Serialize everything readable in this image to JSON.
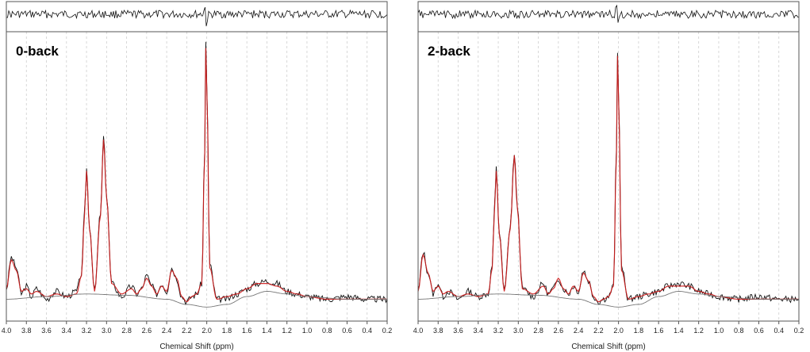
{
  "chart_data": [
    {
      "type": "line",
      "label": "0-back",
      "xlabel": "Chemical Shift (ppm)",
      "ylabel": "",
      "xlim": [
        4.0,
        0.2
      ],
      "x_reversed": true,
      "xticks": [
        "4.0",
        "3.8",
        "3.6",
        "3.4",
        "3.2",
        "3.0",
        "2.8",
        "2.6",
        "2.4",
        "2.2",
        "2.0",
        "1.8",
        "1.6",
        "1.4",
        "1.2",
        "1.0",
        "0.8",
        "0.6",
        "0.4",
        "0.2"
      ],
      "grid": "vertical dashed at each tick",
      "peaks_ppm_rel_height": [
        [
          3.2,
          0.52
        ],
        [
          3.03,
          0.64
        ],
        [
          2.01,
          1.0
        ]
      ],
      "series": [
        {
          "color": "#111111",
          "role": "measured spectrum",
          "x": [
            4.0,
            3.95,
            3.9,
            3.85,
            3.8,
            3.75,
            3.7,
            3.6,
            3.5,
            3.4,
            3.3,
            3.25,
            3.22,
            3.2,
            3.17,
            3.12,
            3.06,
            3.03,
            3.0,
            2.95,
            2.85,
            2.75,
            2.7,
            2.65,
            2.6,
            2.55,
            2.5,
            2.45,
            2.4,
            2.35,
            2.3,
            2.25,
            2.2,
            2.15,
            2.1,
            2.05,
            2.02,
            2.01,
            2.0,
            1.97,
            1.9,
            1.8,
            1.7,
            1.6,
            1.5,
            1.4,
            1.3,
            1.2,
            1.1,
            1.0,
            0.8,
            0.6,
            0.4,
            0.2
          ],
          "y": [
            0.06,
            0.18,
            0.14,
            0.04,
            0.07,
            0.03,
            0.06,
            0.02,
            0.05,
            0.03,
            0.05,
            0.12,
            0.35,
            0.52,
            0.3,
            0.05,
            0.35,
            0.64,
            0.42,
            0.08,
            0.03,
            0.07,
            0.04,
            0.06,
            0.11,
            0.07,
            0.04,
            0.08,
            0.05,
            0.14,
            0.1,
            0.03,
            0.01,
            0.03,
            0.04,
            0.08,
            0.6,
            1.0,
            0.85,
            0.15,
            0.02,
            0.02,
            0.04,
            0.06,
            0.08,
            0.09,
            0.08,
            0.05,
            0.04,
            0.03,
            0.02,
            0.03,
            0.02,
            0.02
          ]
        },
        {
          "color": "#cc1a1a",
          "role": "model fit",
          "x": [
            4.0,
            3.95,
            3.9,
            3.85,
            3.8,
            3.75,
            3.7,
            3.6,
            3.5,
            3.4,
            3.3,
            3.25,
            3.22,
            3.2,
            3.17,
            3.12,
            3.06,
            3.03,
            3.0,
            2.95,
            2.85,
            2.75,
            2.7,
            2.65,
            2.6,
            2.55,
            2.5,
            2.45,
            2.4,
            2.35,
            2.3,
            2.25,
            2.2,
            2.15,
            2.1,
            2.05,
            2.02,
            2.01,
            2.0,
            1.97,
            1.9,
            1.8,
            1.7,
            1.6,
            1.5,
            1.4,
            1.3,
            1.2,
            1.1,
            1.0,
            0.8,
            0.6,
            0.4,
            0.2
          ],
          "y": [
            0.06,
            0.17,
            0.13,
            0.05,
            0.06,
            0.04,
            0.05,
            0.03,
            0.04,
            0.03,
            0.04,
            0.11,
            0.34,
            0.51,
            0.29,
            0.05,
            0.34,
            0.63,
            0.41,
            0.08,
            0.04,
            0.06,
            0.04,
            0.06,
            0.1,
            0.07,
            0.04,
            0.07,
            0.05,
            0.13,
            0.1,
            0.03,
            0.01,
            0.03,
            0.04,
            0.08,
            0.58,
            0.98,
            0.83,
            0.14,
            0.02,
            0.03,
            0.04,
            0.06,
            0.08,
            0.08,
            0.07,
            0.05,
            0.04,
            0.03,
            0.02,
            0.02,
            0.02,
            0.02
          ]
        },
        {
          "color": "#777777",
          "role": "baseline",
          "x": [
            4.0,
            3.6,
            3.2,
            2.8,
            2.4,
            2.2,
            2.0,
            1.8,
            1.6,
            1.4,
            1.2,
            1.0,
            0.6,
            0.2
          ],
          "y": [
            0.02,
            0.03,
            0.04,
            0.035,
            0.02,
            0.0,
            -0.01,
            0.0,
            0.03,
            0.05,
            0.04,
            0.03,
            0.02,
            0.02
          ]
        }
      ]
    },
    {
      "type": "line",
      "label": "2-back",
      "xlabel": "Chemical Shift (ppm)",
      "ylabel": "",
      "xlim": [
        4.0,
        0.2
      ],
      "x_reversed": true,
      "xticks": [
        "4.0",
        "3.8",
        "3.6",
        "3.4",
        "3.2",
        "3.0",
        "2.8",
        "2.6",
        "2.4",
        "2.2",
        "2.0",
        "1.8",
        "1.6",
        "1.4",
        "1.2",
        "1.0",
        "0.8",
        "0.6",
        "0.4",
        "0.2"
      ],
      "grid": "vertical dashed at each tick",
      "peaks_ppm_rel_height": [
        [
          3.22,
          0.52
        ],
        [
          3.04,
          0.58
        ],
        [
          2.01,
          0.97
        ]
      ],
      "series": [
        {
          "color": "#111111",
          "role": "measured spectrum",
          "x": [
            4.0,
            3.95,
            3.9,
            3.85,
            3.8,
            3.75,
            3.7,
            3.6,
            3.5,
            3.4,
            3.3,
            3.26,
            3.24,
            3.22,
            3.19,
            3.14,
            3.08,
            3.04,
            3.01,
            2.96,
            2.85,
            2.75,
            2.7,
            2.65,
            2.6,
            2.55,
            2.5,
            2.45,
            2.4,
            2.35,
            2.3,
            2.25,
            2.2,
            2.15,
            2.1,
            2.05,
            2.02,
            2.01,
            2.0,
            1.97,
            1.9,
            1.8,
            1.7,
            1.6,
            1.5,
            1.4,
            1.3,
            1.2,
            1.1,
            1.0,
            0.8,
            0.6,
            0.4,
            0.2
          ],
          "y": [
            0.05,
            0.2,
            0.12,
            0.04,
            0.08,
            0.03,
            0.05,
            0.02,
            0.05,
            0.03,
            0.04,
            0.15,
            0.35,
            0.52,
            0.28,
            0.05,
            0.3,
            0.58,
            0.38,
            0.06,
            0.03,
            0.08,
            0.04,
            0.06,
            0.1,
            0.06,
            0.04,
            0.07,
            0.05,
            0.13,
            0.09,
            0.03,
            0.01,
            0.02,
            0.03,
            0.07,
            0.6,
            0.97,
            0.82,
            0.14,
            0.02,
            0.03,
            0.04,
            0.05,
            0.07,
            0.08,
            0.07,
            0.05,
            0.04,
            0.03,
            0.02,
            0.03,
            0.02,
            0.02
          ]
        },
        {
          "color": "#cc1a1a",
          "role": "model fit",
          "x": [
            4.0,
            3.95,
            3.9,
            3.85,
            3.8,
            3.75,
            3.7,
            3.6,
            3.5,
            3.4,
            3.3,
            3.26,
            3.24,
            3.22,
            3.19,
            3.14,
            3.08,
            3.04,
            3.01,
            2.96,
            2.85,
            2.75,
            2.7,
            2.65,
            2.6,
            2.55,
            2.5,
            2.45,
            2.4,
            2.35,
            2.3,
            2.25,
            2.2,
            2.15,
            2.1,
            2.05,
            2.02,
            2.01,
            2.0,
            1.97,
            1.9,
            1.8,
            1.7,
            1.6,
            1.5,
            1.4,
            1.3,
            1.2,
            1.1,
            1.0,
            0.8,
            0.6,
            0.4,
            0.2
          ],
          "y": [
            0.05,
            0.19,
            0.12,
            0.05,
            0.07,
            0.04,
            0.05,
            0.03,
            0.04,
            0.03,
            0.04,
            0.14,
            0.34,
            0.51,
            0.27,
            0.05,
            0.29,
            0.57,
            0.37,
            0.06,
            0.04,
            0.07,
            0.04,
            0.06,
            0.1,
            0.06,
            0.04,
            0.07,
            0.05,
            0.12,
            0.09,
            0.03,
            0.01,
            0.02,
            0.03,
            0.07,
            0.58,
            0.95,
            0.8,
            0.13,
            0.02,
            0.03,
            0.04,
            0.05,
            0.07,
            0.07,
            0.07,
            0.05,
            0.04,
            0.03,
            0.02,
            0.02,
            0.02,
            0.02
          ]
        },
        {
          "color": "#777777",
          "role": "baseline",
          "x": [
            4.0,
            3.6,
            3.2,
            2.8,
            2.4,
            2.2,
            2.0,
            1.8,
            1.6,
            1.4,
            1.2,
            1.0,
            0.6,
            0.2
          ],
          "y": [
            0.02,
            0.03,
            0.04,
            0.035,
            0.02,
            0.0,
            -0.01,
            0.0,
            0.03,
            0.05,
            0.04,
            0.03,
            0.02,
            0.02
          ]
        }
      ]
    }
  ]
}
